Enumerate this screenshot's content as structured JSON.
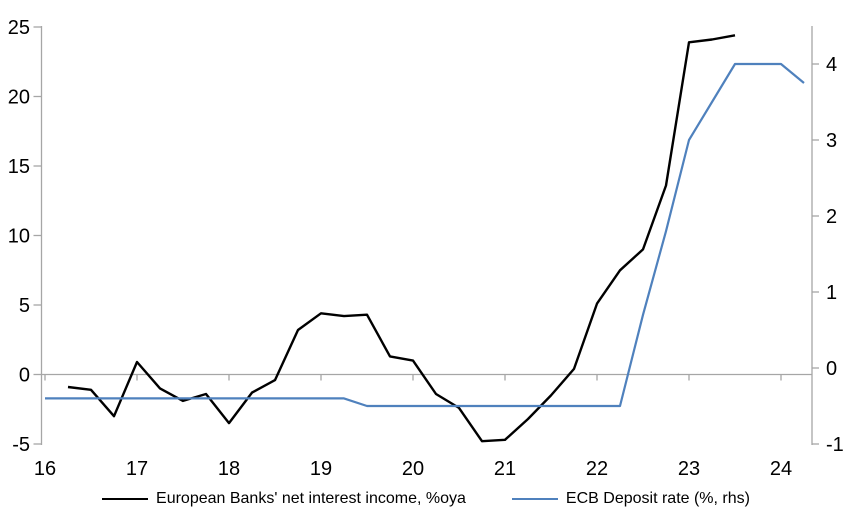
{
  "chart_data": {
    "type": "line",
    "title": "",
    "x_ticks": [
      16,
      17,
      18,
      19,
      20,
      21,
      22,
      23,
      24
    ],
    "x_range": [
      16,
      24.35
    ],
    "left_axis": {
      "ticks": [
        -5,
        0,
        5,
        10,
        15,
        20,
        25
      ],
      "range": [
        -5,
        25
      ]
    },
    "right_axis": {
      "ticks": [
        -1,
        0,
        1,
        2,
        3,
        4
      ],
      "range": [
        -1,
        4.5
      ]
    },
    "zero_gridline": true,
    "grid": "off",
    "legend_position": "bottom",
    "series": [
      {
        "name": "European Banks' net interest income, %oya",
        "axis": "left",
        "color": "#000000",
        "stroke_width": 2.4,
        "x": [
          16.25,
          16.5,
          16.75,
          17.0,
          17.25,
          17.5,
          17.75,
          18.0,
          18.25,
          18.5,
          18.75,
          19.0,
          19.25,
          19.5,
          19.75,
          20.0,
          20.25,
          20.5,
          20.75,
          21.0,
          21.25,
          21.5,
          21.75,
          22.0,
          22.25,
          22.5,
          22.75,
          23.0,
          23.25,
          23.5
        ],
        "values": [
          -0.9,
          -1.1,
          -3.0,
          0.9,
          -1.0,
          -1.9,
          -1.4,
          -3.5,
          -1.3,
          -0.4,
          3.2,
          4.4,
          4.2,
          4.3,
          1.3,
          1.0,
          -1.4,
          -2.4,
          -4.8,
          -4.7,
          -3.2,
          -1.5,
          0.4,
          5.1,
          7.5,
          9.0,
          13.6,
          23.9,
          24.1,
          24.4
        ]
      },
      {
        "name": "ECB Deposit rate (%, rhs)",
        "axis": "right",
        "color": "#4f81bd",
        "stroke_width": 2.2,
        "x": [
          16.0,
          16.25,
          16.5,
          16.75,
          17.0,
          17.25,
          17.5,
          17.75,
          18.0,
          18.25,
          18.5,
          18.75,
          19.0,
          19.25,
          19.5,
          19.75,
          20.0,
          20.25,
          20.5,
          20.75,
          21.0,
          21.25,
          21.5,
          21.75,
          22.0,
          22.25,
          22.5,
          22.75,
          23.0,
          23.25,
          23.5,
          23.75,
          24.0,
          24.25
        ],
        "values": [
          -0.4,
          -0.4,
          -0.4,
          -0.4,
          -0.4,
          -0.4,
          -0.4,
          -0.4,
          -0.4,
          -0.4,
          -0.4,
          -0.4,
          -0.4,
          -0.4,
          -0.5,
          -0.5,
          -0.5,
          -0.5,
          -0.5,
          -0.5,
          -0.5,
          -0.5,
          -0.5,
          -0.5,
          -0.5,
          -0.5,
          0.7,
          1.8,
          3.0,
          3.5,
          4.0,
          4.0,
          4.0,
          3.75
        ]
      }
    ]
  },
  "colors": {
    "axis_gray": "#a6a6a6",
    "background": "#ffffff",
    "text": "#000000"
  }
}
